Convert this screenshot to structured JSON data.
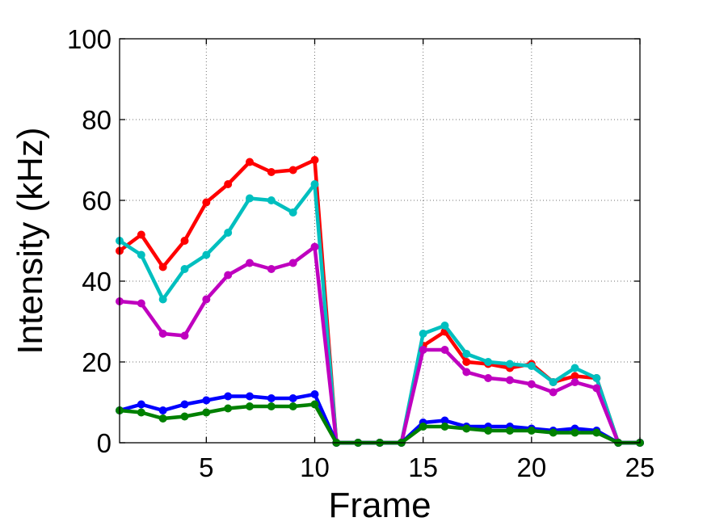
{
  "chart_data": {
    "type": "line",
    "title": "",
    "xlabel": "Frame",
    "ylabel": "Intensity (kHz)",
    "xlim": [
      1,
      25
    ],
    "ylim": [
      0,
      100
    ],
    "xticks": [
      5,
      10,
      15,
      20,
      25
    ],
    "yticks": [
      0,
      20,
      40,
      60,
      80,
      100
    ],
    "grid": true,
    "legend": "none",
    "x": [
      1,
      2,
      3,
      4,
      5,
      6,
      7,
      8,
      9,
      10,
      11,
      12,
      13,
      14,
      15,
      16,
      17,
      18,
      19,
      20,
      21,
      22,
      23,
      24,
      25
    ],
    "series": [
      {
        "color": "#ff0000",
        "values": [
          47.5,
          51.5,
          43.5,
          50,
          59.5,
          64,
          69.5,
          67,
          67.5,
          70,
          0,
          0,
          0,
          0,
          24,
          27.5,
          20,
          19.5,
          18.5,
          19.5,
          15,
          16.5,
          16,
          0,
          0
        ]
      },
      {
        "color": "#00bfbf",
        "values": [
          50,
          46.5,
          35.5,
          43,
          46.5,
          52,
          60.5,
          60,
          57,
          64,
          0,
          0,
          0,
          0,
          27,
          29,
          22,
          20,
          19.5,
          19,
          15,
          18.5,
          16,
          0,
          0
        ]
      },
      {
        "color": "#bf00bf",
        "values": [
          35,
          34.5,
          27,
          26.5,
          35.5,
          41.5,
          44.5,
          43,
          44.5,
          48.5,
          0,
          0,
          0,
          0,
          23,
          23,
          17.5,
          16,
          15.5,
          14.5,
          12.5,
          15,
          13.5,
          0,
          0
        ]
      },
      {
        "color": "#0000ff",
        "values": [
          8,
          9.5,
          8,
          9.5,
          10.5,
          11.5,
          11.5,
          11,
          11,
          12,
          0,
          0,
          0,
          0,
          5,
          5.5,
          4,
          4,
          4,
          3.5,
          3,
          3.5,
          3,
          0,
          0
        ]
      },
      {
        "color": "#008000",
        "values": [
          8,
          7.5,
          6,
          6.5,
          7.5,
          8.5,
          9,
          9,
          9,
          9.5,
          0,
          0,
          0,
          0,
          4,
          4,
          3.5,
          3,
          3,
          3,
          2.5,
          2.5,
          2.5,
          0,
          0
        ]
      }
    ]
  }
}
